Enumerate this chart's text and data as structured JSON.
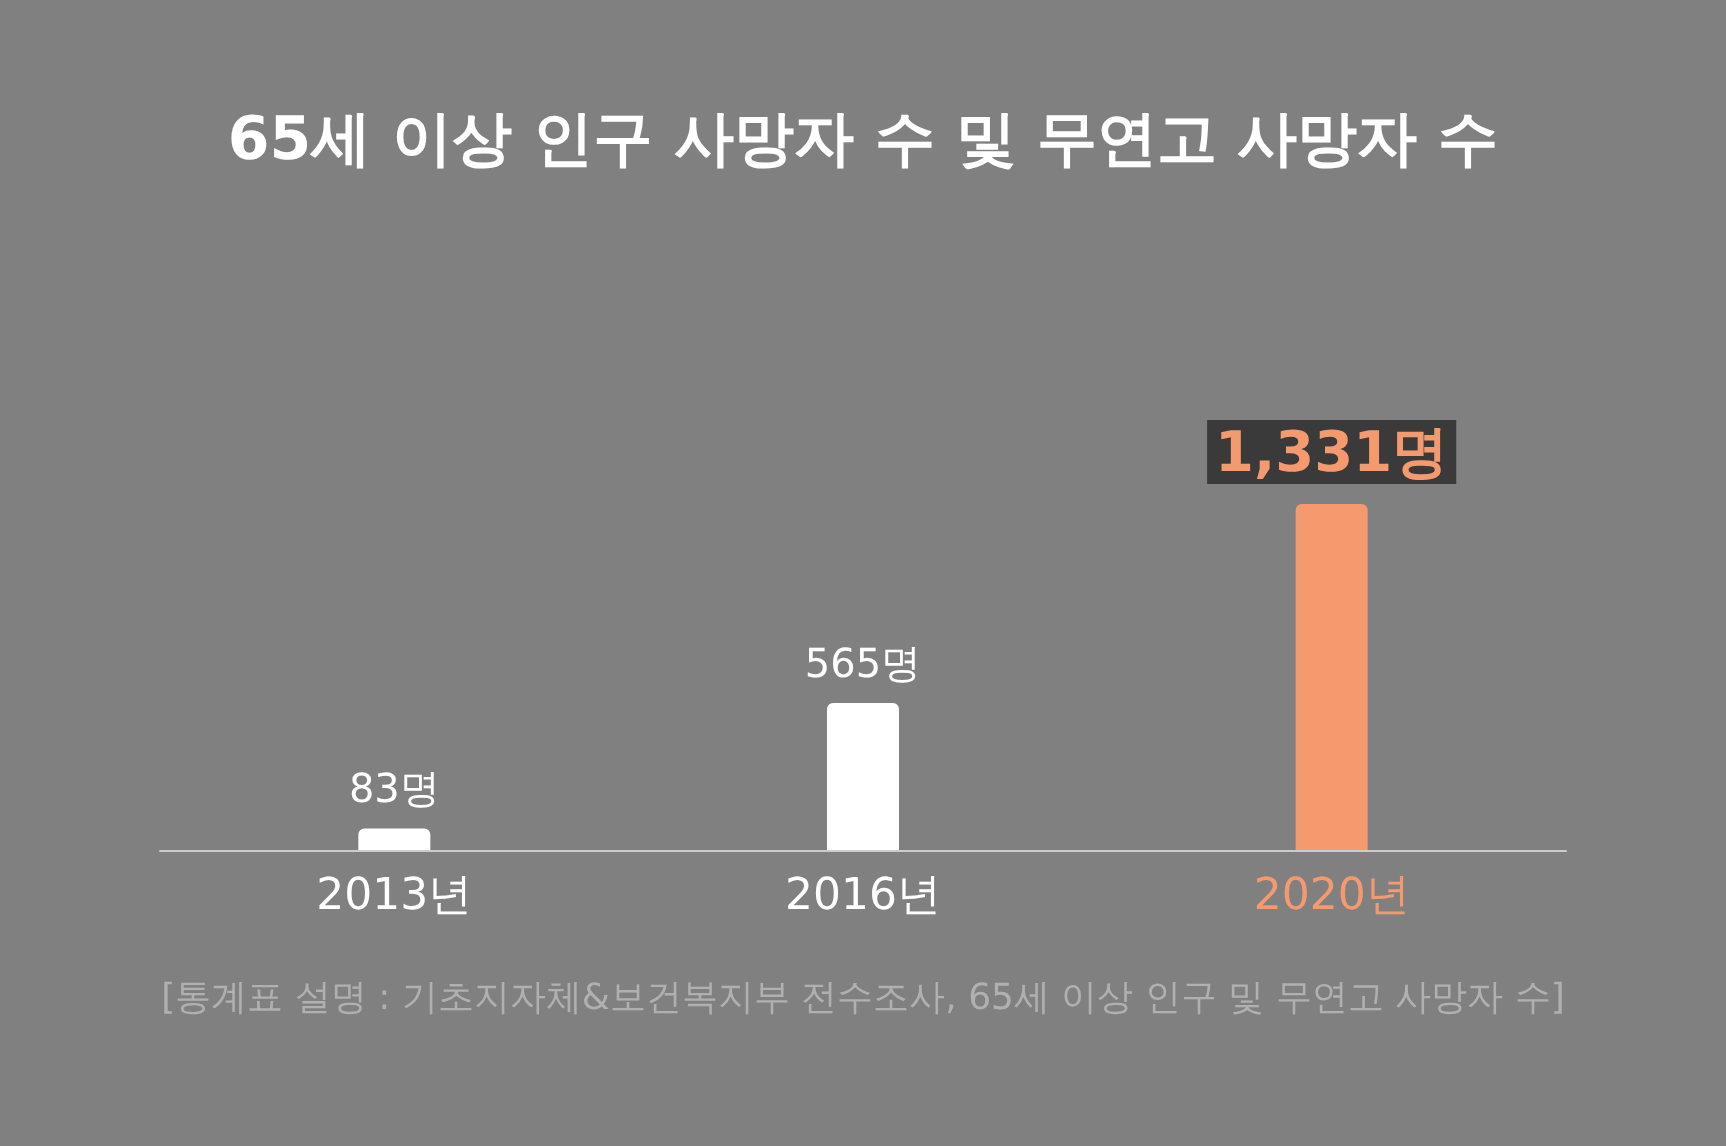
{
  "chart_data": {
    "type": "bar",
    "title": "65세 이상 인구 사망자 수 및 무연고 사망자 수",
    "categories": [
      "2013년",
      "2016년",
      "2020년"
    ],
    "values": [
      83,
      565,
      1331
    ],
    "colors": [
      "#ffffff",
      "#ffffff",
      "#f59a6e"
    ],
    "value_labels": [
      "83명",
      "565명",
      "1,331명"
    ],
    "annotations": [
      "[통계표 설명 : 기초지자체&보건복지부 전수조사, 65세 이상 인구 및 무연고 사망자 수]"
    ],
    "tick_labels": "x"
  }
}
